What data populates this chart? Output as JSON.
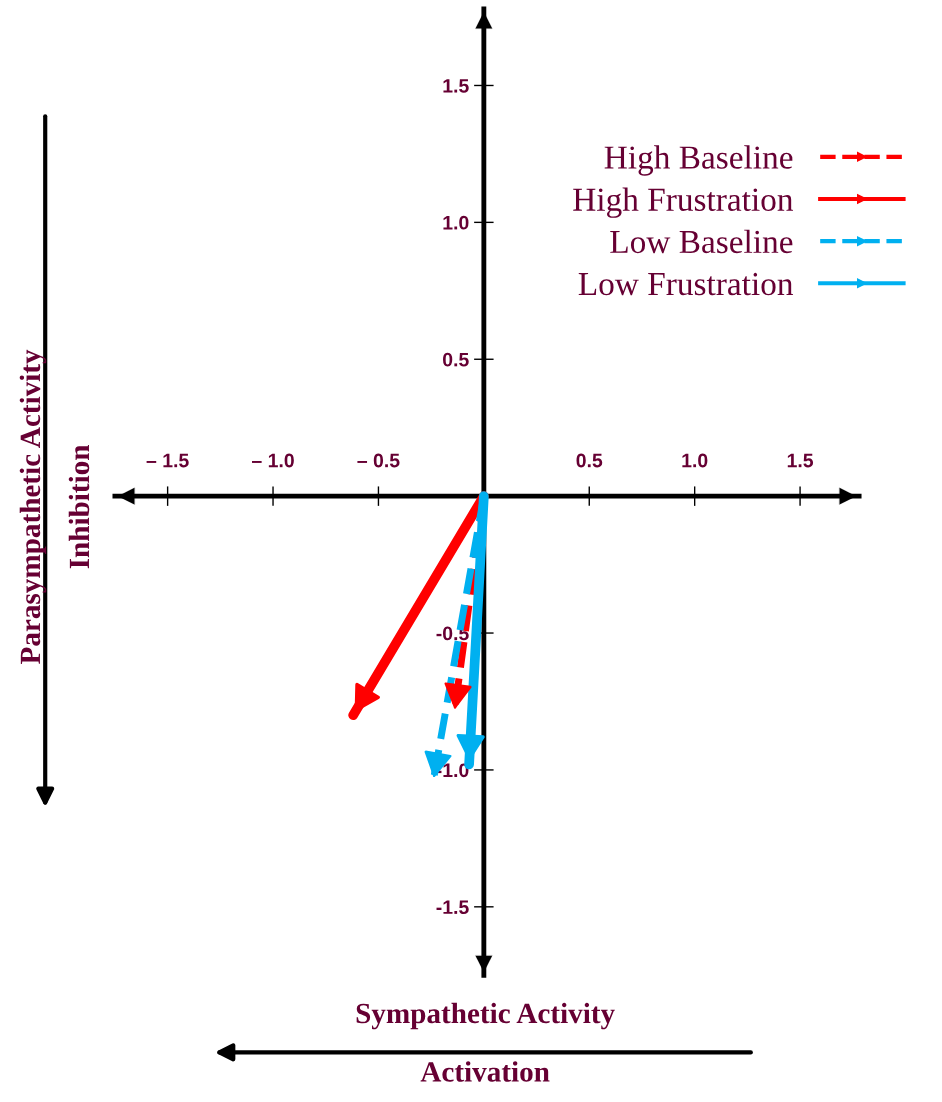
{
  "chart_data": {
    "type": "line",
    "xlabel": "Sympathetic Activity",
    "ylabel": "Parasympathetic Activity",
    "annotations": [
      "Inhibition",
      "Activation"
    ],
    "series": [
      {
        "name": "High Baseline",
        "color": "#ff0000",
        "line_style": "dashed",
        "x": [
          0,
          -0.14
        ],
        "values": [
          0,
          -0.79
        ]
      },
      {
        "name": "High Frustration",
        "color": "#ff0000",
        "line_style": "solid",
        "x": [
          0,
          -0.62
        ],
        "values": [
          0,
          -0.8
        ]
      },
      {
        "name": "Low Baseline",
        "color": "#00b0f0",
        "line_style": "dashed",
        "x": [
          0,
          -0.24
        ],
        "values": [
          0,
          -1.04
        ]
      },
      {
        "name": "Low Frustration",
        "color": "#00b0f0",
        "line_style": "solid",
        "x": [
          0,
          -0.07
        ],
        "values": [
          0,
          -0.98
        ]
      }
    ],
    "xlim": [
      -1.75,
      1.78
    ],
    "ylim": [
      -1.75,
      1.78
    ],
    "xticks": [
      {
        "value": -1.5,
        "label": "– 1.5"
      },
      {
        "value": -1.0,
        "label": "– 1.0"
      },
      {
        "value": -0.5,
        "label": "– 0.5"
      },
      {
        "value": 0.5,
        "label": "0.5"
      },
      {
        "value": 1.0,
        "label": "1.0"
      },
      {
        "value": 1.5,
        "label": "1.5"
      }
    ],
    "yticks": [
      {
        "value": -1.5,
        "label": "-1.5"
      },
      {
        "value": -1.0,
        "label": "-1.0"
      },
      {
        "value": -0.5,
        "label": "-0.5"
      },
      {
        "value": 0.5,
        "label": "0.5"
      },
      {
        "value": 1.0,
        "label": "1.0"
      },
      {
        "value": 1.5,
        "label": "1.5"
      }
    ],
    "grid": false,
    "legend": "top right",
    "marker": "none"
  }
}
